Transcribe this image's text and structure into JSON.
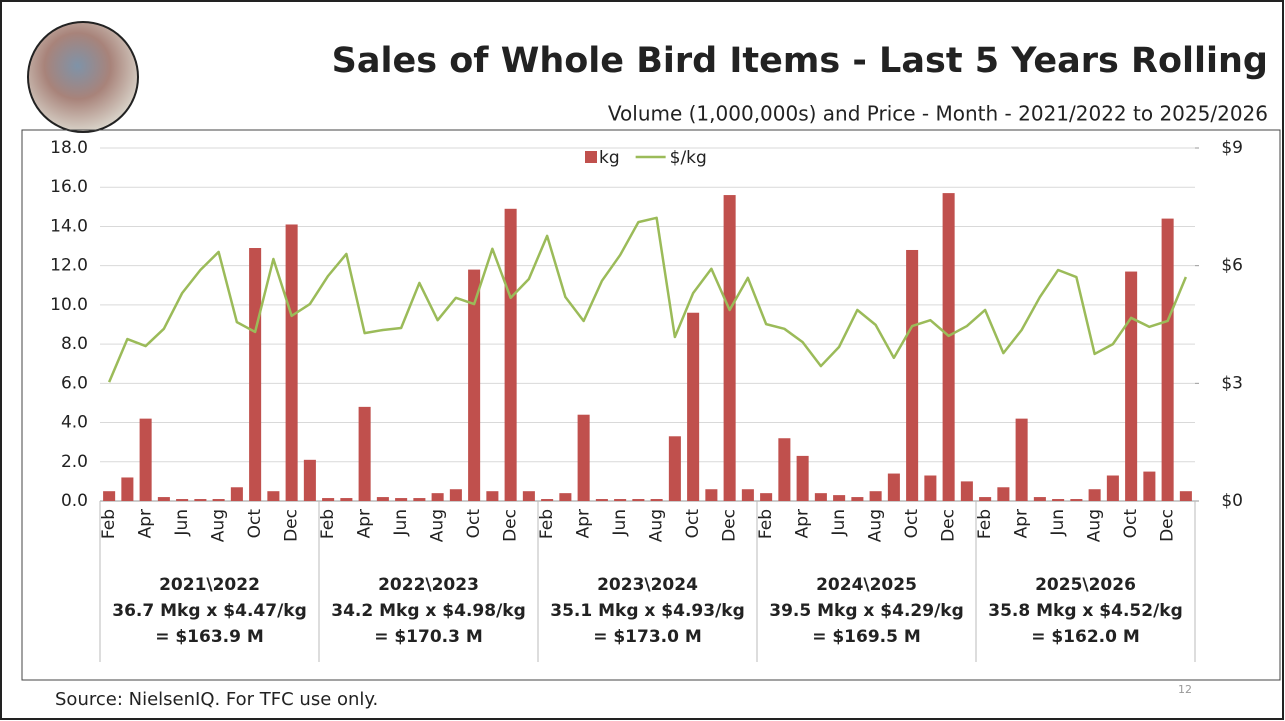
{
  "chart_data": {
    "type": "bar",
    "title": "Sales of Whole Bird Items - Last 5 Years Rolling",
    "subtitle": "Volume (1,000,000s) and Price - Month - 2021/2022 to 2025/2026",
    "categories": [
      "Feb",
      null,
      "Apr",
      null,
      "Jun",
      null,
      "Aug",
      null,
      "Oct",
      null,
      "Dec",
      null,
      "Feb",
      null,
      "Apr",
      null,
      "Jun",
      null,
      "Aug",
      null,
      "Oct",
      null,
      "Dec",
      null,
      "Feb",
      null,
      "Apr",
      null,
      "Jun",
      null,
      "Aug",
      null,
      "Oct",
      null,
      "Dec",
      null,
      "Feb",
      null,
      "Apr",
      null,
      "Jun",
      null,
      "Aug",
      null,
      "Oct",
      null,
      "Dec",
      null,
      "Feb",
      null,
      "Apr",
      null,
      "Jun",
      null,
      "Aug",
      null,
      "Oct",
      null,
      "Dec",
      null
    ],
    "series": [
      {
        "name": "kg",
        "type": "bar",
        "color": "#c0504d",
        "values": [
          0.5,
          1.2,
          4.2,
          0.2,
          0.1,
          0.1,
          0.1,
          0.7,
          12.9,
          0.5,
          14.1,
          2.1,
          0.15,
          0.15,
          4.8,
          0.2,
          0.15,
          0.15,
          0.4,
          0.6,
          11.8,
          0.5,
          14.9,
          0.5,
          0.1,
          0.4,
          4.4,
          0.1,
          0.1,
          0.1,
          0.1,
          3.3,
          9.6,
          0.6,
          15.6,
          0.6,
          0.4,
          3.2,
          2.3,
          0.4,
          0.3,
          0.2,
          0.5,
          1.4,
          12.8,
          1.3,
          15.7,
          1.0,
          0.2,
          0.7,
          4.2,
          0.2,
          0.1,
          0.1,
          0.6,
          1.3,
          11.7,
          1.5,
          14.4,
          0.5
        ]
      },
      {
        "name": "$/kg",
        "type": "line",
        "axis": "y2",
        "color": "#9bbb59",
        "values": [
          3.03,
          4.13,
          3.95,
          4.39,
          5.3,
          5.89,
          6.35,
          4.56,
          4.31,
          6.17,
          4.72,
          5.02,
          5.74,
          6.3,
          4.28,
          4.36,
          4.41,
          5.56,
          4.61,
          5.18,
          5.02,
          6.43,
          5.18,
          5.66,
          6.76,
          5.2,
          4.59,
          5.61,
          6.27,
          7.11,
          7.22,
          4.18,
          5.3,
          5.92,
          4.87,
          5.69,
          4.51,
          4.39,
          4.05,
          3.44,
          3.93,
          4.87,
          4.49,
          3.65,
          4.46,
          4.61,
          4.21,
          4.46,
          4.87,
          3.77,
          4.36,
          5.2,
          5.89,
          5.71,
          3.75,
          4.0,
          4.67,
          4.44,
          4.59,
          5.71
        ]
      }
    ],
    "ylim": [
      0,
      18
    ],
    "yticks": [
      {
        "value": 0,
        "label": "0.0"
      },
      {
        "value": 2,
        "label": "2.0"
      },
      {
        "value": 4,
        "label": "4.0"
      },
      {
        "value": 6,
        "label": "6.0"
      },
      {
        "value": 8,
        "label": "8.0"
      },
      {
        "value": 10,
        "label": "10.0"
      },
      {
        "value": 12,
        "label": "12.0"
      },
      {
        "value": 14,
        "label": "14.0"
      },
      {
        "value": 16,
        "label": "16.0"
      },
      {
        "value": 18,
        "label": "18.0"
      }
    ],
    "y2lim": [
      0,
      9
    ],
    "y2ticks": [
      {
        "value": 0,
        "label": "$0"
      },
      {
        "value": 3,
        "label": "$3"
      },
      {
        "value": 6,
        "label": "$6"
      },
      {
        "value": 9,
        "label": "$9"
      }
    ],
    "grid": true,
    "legend": "top",
    "groups": [
      {
        "name": "2021\\2022",
        "volume": "36.7 Mkg x $4.47/kg",
        "total": "= $163.9 M"
      },
      {
        "name": "2022\\2023",
        "volume": "34.2 Mkg x $4.98/kg",
        "total": "= $170.3 M"
      },
      {
        "name": "2023\\2024",
        "volume": "35.1 Mkg x $4.93/kg",
        "total": "= $173.0 M"
      },
      {
        "name": "2024\\2025",
        "volume": "39.5 Mkg x $4.29/kg",
        "total": "= $169.5 M"
      },
      {
        "name": "2025\\2026",
        "volume": "35.8 Mkg x $4.52/kg",
        "total": "= $162.0 M"
      }
    ],
    "source": "Source: NielsenIQ.  For TFC use only.",
    "page_number": "12"
  }
}
